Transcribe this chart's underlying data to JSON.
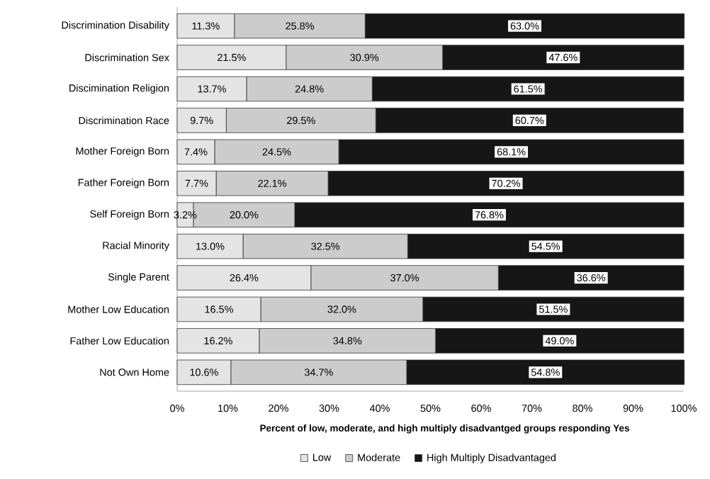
{
  "chart_data": {
    "type": "bar",
    "orientation": "horizontal",
    "stacked": true,
    "xlabel": "Percent of low, moderate, and high multiply disadvantged groups responding Yes",
    "categories": [
      "Discrimination Disability",
      "Discrimination Sex",
      "Discimination Religion",
      "Discrimination Race",
      "Mother Foreign Born",
      "Father Foreign Born",
      "Self Foreign Born",
      "Racial Minority",
      "Single Parent",
      "Mother Low Education",
      "Father Low Education",
      "Not Own Home"
    ],
    "series": [
      {
        "name": "Low",
        "color": "#e4e4e4",
        "values": [
          11.3,
          21.5,
          13.7,
          9.7,
          7.4,
          7.7,
          3.2,
          13.0,
          26.4,
          16.5,
          16.2,
          10.6
        ],
        "value_labels": [
          "11.3%",
          "21.5%",
          "13.7%",
          "9.7%",
          "7.4%",
          "7.7%",
          "3.2%",
          "13.0%",
          "26.4%",
          "16.5%",
          "16.2%",
          "10.6%"
        ]
      },
      {
        "name": "Moderate",
        "color": "#cccccc",
        "values": [
          25.8,
          30.9,
          24.8,
          29.5,
          24.5,
          22.1,
          20.0,
          32.5,
          37.0,
          32.0,
          34.8,
          34.7
        ],
        "value_labels": [
          "25.8%",
          "30.9%",
          "24.8%",
          "29.5%",
          "24.5%",
          "22.1%",
          "20.0%",
          "32.5%",
          "37.0%",
          "32.0%",
          "34.8%",
          "34.7%"
        ]
      },
      {
        "name": "High Multiply Disadvantaged",
        "color": "#161616",
        "values": [
          63.0,
          47.6,
          61.5,
          60.7,
          68.1,
          70.2,
          76.8,
          54.5,
          36.6,
          51.5,
          49.0,
          54.8
        ],
        "value_labels": [
          "63.0%",
          "47.6%",
          "61.5%",
          "60.7%",
          "68.1%",
          "70.2%",
          "76.8%",
          "54.5%",
          "36.6%",
          "51.5%",
          "49.0%",
          "54.8%"
        ]
      }
    ],
    "xlim": [
      0,
      100
    ],
    "xticks": [
      {
        "value": 0,
        "label": "0%"
      },
      {
        "value": 10,
        "label": "10%"
      },
      {
        "value": 20,
        "label": "20%"
      },
      {
        "value": 30,
        "label": "30%"
      },
      {
        "value": 40,
        "label": "40%"
      },
      {
        "value": 50,
        "label": "50%"
      },
      {
        "value": 60,
        "label": "60%"
      },
      {
        "value": 70,
        "label": "70%"
      },
      {
        "value": 80,
        "label": "80%"
      },
      {
        "value": 90,
        "label": "90%"
      },
      {
        "value": 100,
        "label": "100%"
      }
    ],
    "grid": false,
    "legend": "bottom"
  }
}
